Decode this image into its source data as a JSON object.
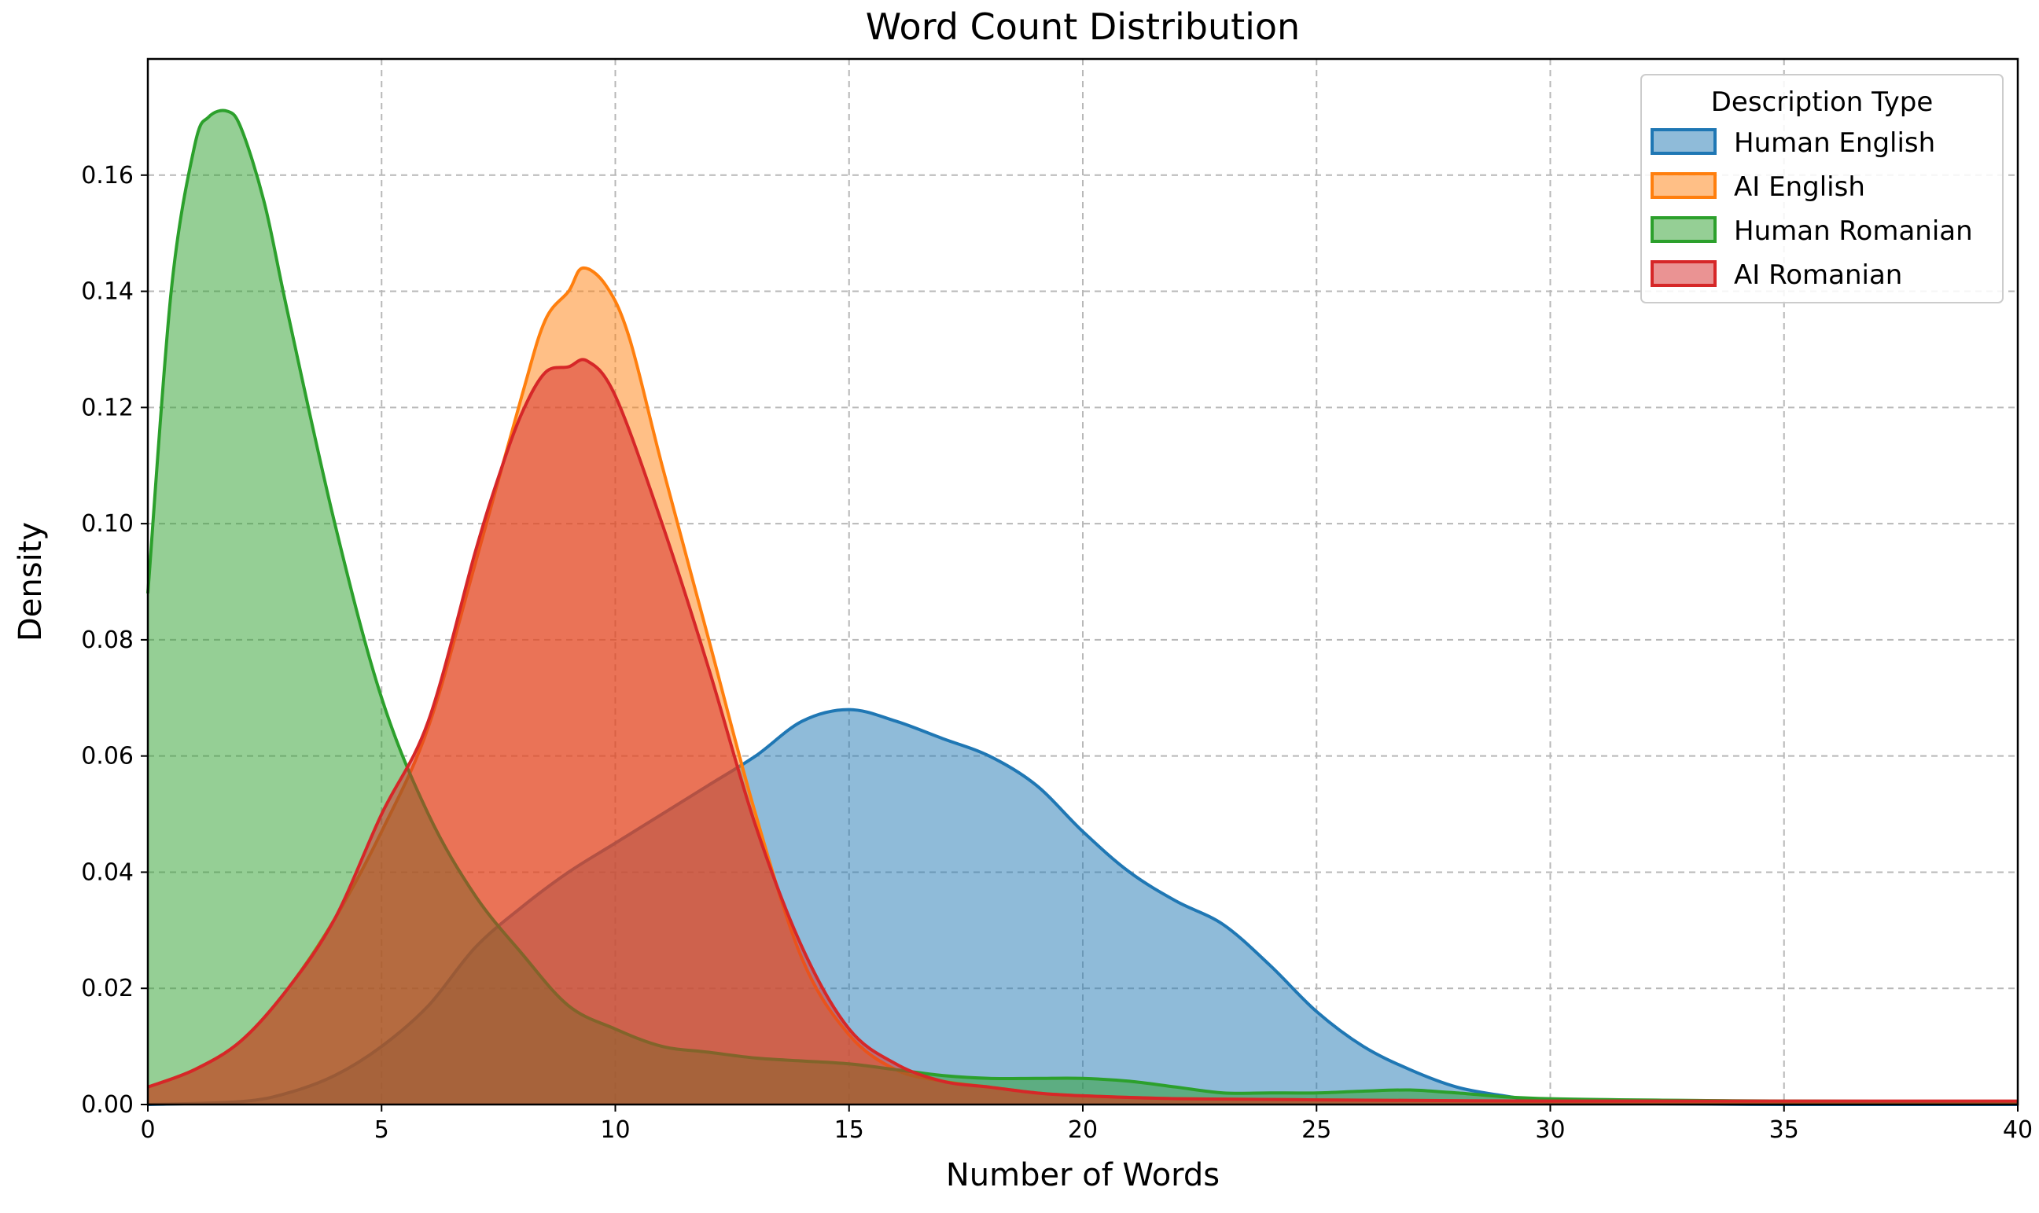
{
  "chart_data": {
    "type": "area",
    "title": "Word Count Distribution",
    "xlabel": "Number of Words",
    "ylabel": "Density",
    "xlim": [
      0,
      40
    ],
    "ylim": [
      0,
      0.18
    ],
    "xticks": [
      0,
      5,
      10,
      15,
      20,
      25,
      30,
      35,
      40
    ],
    "xtick_labels": [
      "0",
      "5",
      "10",
      "15",
      "20",
      "25",
      "30",
      "35",
      "40"
    ],
    "yticks": [
      0,
      0.02,
      0.04,
      0.06,
      0.08,
      0.1,
      0.12,
      0.14,
      0.16
    ],
    "ytick_labels": [
      "0.00",
      "0.02",
      "0.04",
      "0.06",
      "0.08",
      "0.10",
      "0.12",
      "0.14",
      "0.16"
    ],
    "grid": true,
    "legend": {
      "title": "Description Type",
      "placement": "top-right"
    },
    "series": [
      {
        "name": "Human English",
        "color": "#1f77b4",
        "x": [
          0,
          2,
          3,
          4,
          5,
          6,
          7,
          8,
          9,
          10,
          11,
          12,
          13,
          14,
          15,
          16,
          17,
          18,
          19,
          20,
          21,
          22,
          23,
          24,
          25,
          26,
          27,
          28,
          29,
          30,
          31,
          35,
          40
        ],
        "y": [
          0.0,
          0.0005,
          0.002,
          0.005,
          0.01,
          0.017,
          0.027,
          0.034,
          0.04,
          0.045,
          0.05,
          0.055,
          0.06,
          0.066,
          0.068,
          0.066,
          0.063,
          0.06,
          0.055,
          0.047,
          0.04,
          0.035,
          0.031,
          0.024,
          0.016,
          0.01,
          0.006,
          0.003,
          0.0015,
          0.0004,
          0.0002,
          0.0,
          0.0
        ]
      },
      {
        "name": "AI English",
        "color": "#ff7f0e",
        "x": [
          0,
          1,
          2,
          3,
          4,
          5,
          6,
          7,
          8,
          8.5,
          9,
          9.3,
          9.8,
          10.3,
          11,
          12,
          13,
          14,
          15,
          16,
          17,
          18,
          19,
          20,
          22,
          25,
          30,
          35,
          40
        ],
        "y": [
          0.003,
          0.006,
          0.011,
          0.02,
          0.032,
          0.047,
          0.065,
          0.093,
          0.122,
          0.135,
          0.14,
          0.144,
          0.141,
          0.132,
          0.11,
          0.08,
          0.05,
          0.025,
          0.012,
          0.006,
          0.004,
          0.003,
          0.002,
          0.0015,
          0.001,
          0.0008,
          0.0005,
          0.0004,
          0.0003
        ]
      },
      {
        "name": "Human Romanian",
        "color": "#2ca02c",
        "x": [
          0,
          0.5,
          1,
          1.3,
          1.7,
          2,
          2.5,
          3,
          4,
          5,
          6,
          7,
          8,
          9,
          10,
          11,
          12,
          13,
          14,
          15,
          16,
          17,
          18,
          19,
          20,
          21,
          22,
          23,
          24,
          25,
          26,
          27,
          28,
          30,
          35,
          40
        ],
        "y": [
          0.088,
          0.14,
          0.165,
          0.17,
          0.171,
          0.168,
          0.155,
          0.136,
          0.1,
          0.07,
          0.05,
          0.036,
          0.026,
          0.017,
          0.013,
          0.01,
          0.009,
          0.008,
          0.0075,
          0.007,
          0.006,
          0.005,
          0.0045,
          0.0045,
          0.0045,
          0.004,
          0.003,
          0.002,
          0.002,
          0.002,
          0.0023,
          0.0025,
          0.002,
          0.001,
          0.0006,
          0.0005
        ]
      },
      {
        "name": "AI Romanian",
        "color": "#d62728",
        "x": [
          0,
          1,
          2,
          3,
          4,
          5,
          6,
          7,
          7.5,
          8,
          8.5,
          9,
          9.4,
          10,
          11,
          12,
          13,
          14,
          15,
          16,
          17,
          18,
          19,
          20,
          22,
          25,
          30,
          35,
          40
        ],
        "y": [
          0.003,
          0.006,
          0.011,
          0.02,
          0.032,
          0.05,
          0.066,
          0.095,
          0.108,
          0.119,
          0.126,
          0.127,
          0.128,
          0.122,
          0.1,
          0.075,
          0.048,
          0.027,
          0.013,
          0.007,
          0.004,
          0.003,
          0.002,
          0.0015,
          0.001,
          0.0008,
          0.0006,
          0.0006,
          0.0006
        ]
      }
    ]
  }
}
